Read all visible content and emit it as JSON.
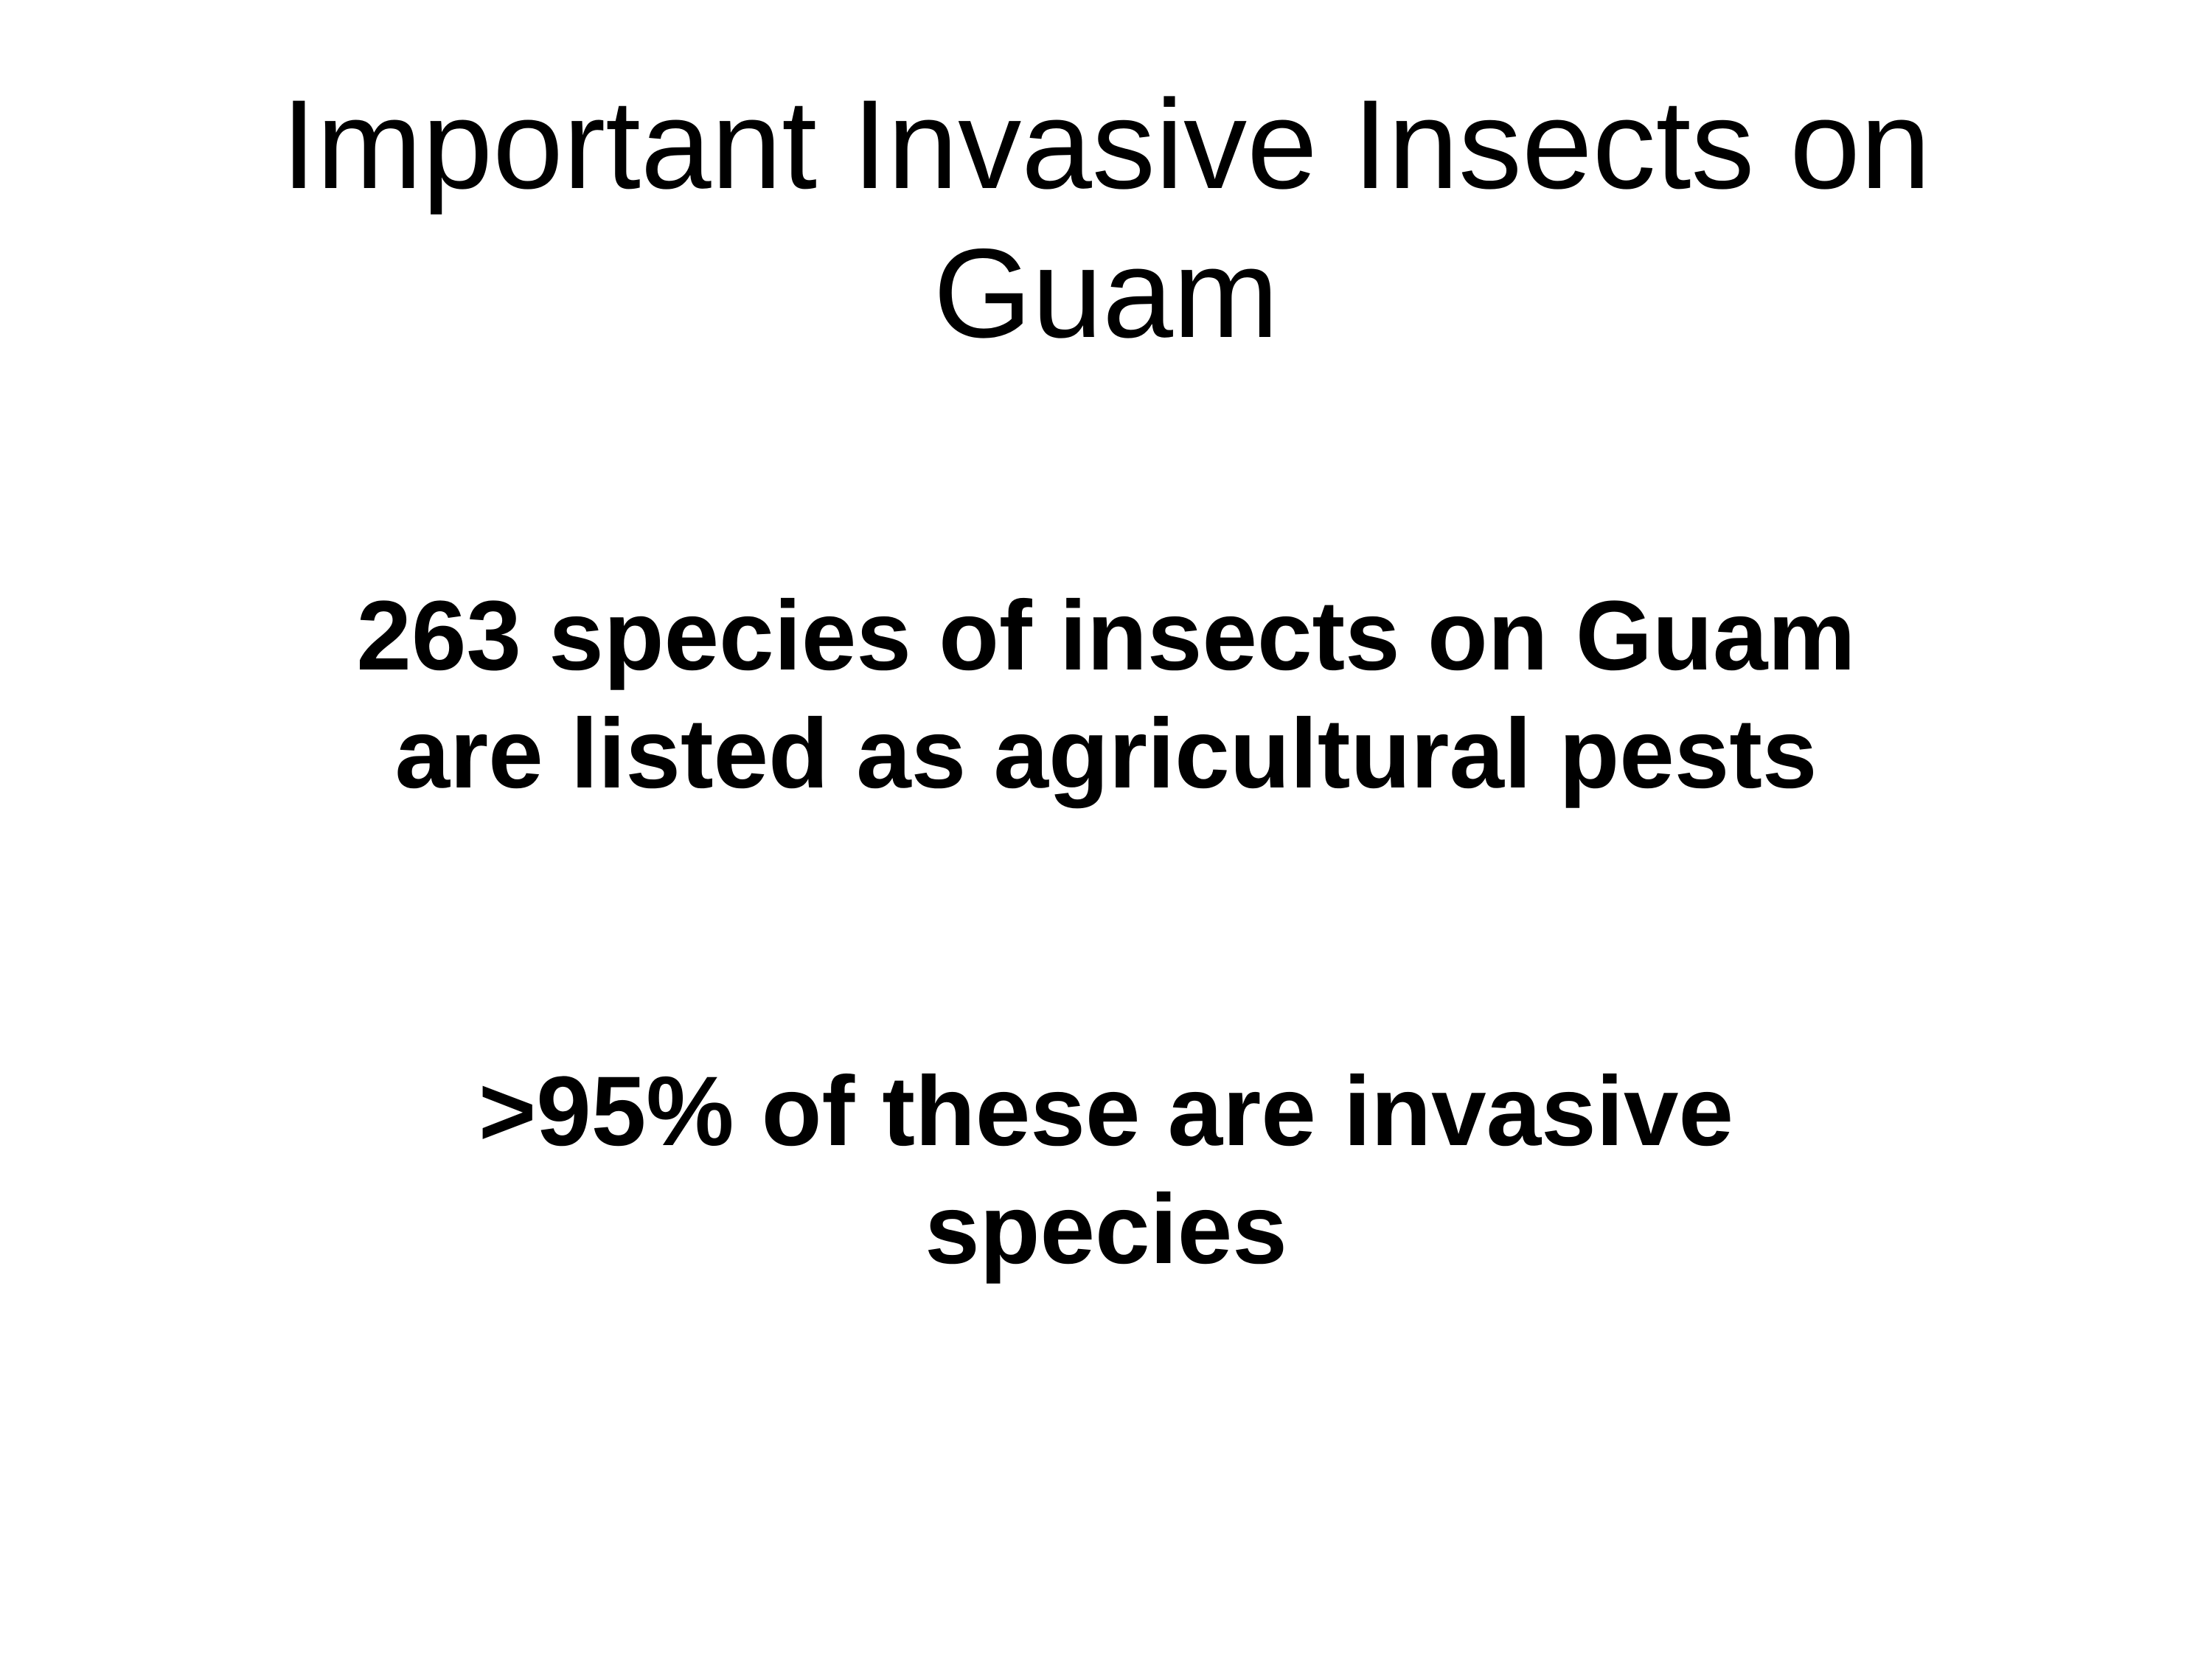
{
  "slide": {
    "title_lines": [
      "Important Invasive Insects on",
      "Guam"
    ],
    "points": [
      {
        "lines": [
          "263 species of insects on Guam",
          "are listed as agricultural pests"
        ]
      },
      {
        "lines": [
          ">95% of these are invasive",
          "species"
        ]
      }
    ]
  },
  "colors": {
    "background": "#ffffff",
    "text": "#000000"
  }
}
